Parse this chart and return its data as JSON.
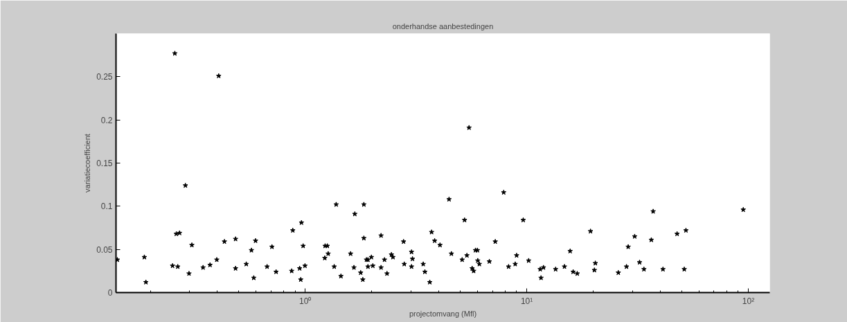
{
  "chart_data": {
    "type": "scatter",
    "title": "onderhandse aanbestedingen",
    "xlabel": "projectomvang (Mfl)",
    "ylabel": "variatiecoefficient",
    "log": "x",
    "xlim": [
      0.14,
      125
    ],
    "ylim": [
      0,
      0.3
    ],
    "xticks": [
      {
        "value": 1,
        "label": "10⁰"
      },
      {
        "value": 10,
        "label": "10¹"
      },
      {
        "value": 100,
        "label": "10²"
      }
    ],
    "yticks": [
      0,
      0.05,
      0.1,
      0.15,
      0.2,
      0.25
    ],
    "grid": false,
    "marker": "star",
    "series": [
      {
        "color": "#000000",
        "x": [
          0.142,
          0.188,
          0.191,
          0.258,
          0.252,
          0.262,
          0.271,
          0.266,
          0.288,
          0.299,
          0.308,
          0.346,
          0.372,
          0.399,
          0.407,
          0.432,
          0.485,
          0.485,
          0.542,
          0.572,
          0.586,
          0.597,
          0.673,
          0.708,
          0.739,
          0.869,
          0.879,
          0.944,
          0.955,
          0.962,
          0.979,
          0.998,
          1.226,
          1.23,
          1.259,
          1.27,
          1.352,
          1.38,
          1.45,
          1.603,
          1.66,
          1.675,
          1.78,
          1.82,
          1.84,
          1.84,
          1.89,
          1.92,
          1.92,
          1.99,
          2.02,
          2.2,
          2.2,
          2.28,
          2.34,
          2.45,
          2.49,
          2.78,
          2.8,
          3.02,
          3.02,
          3.05,
          3.41,
          3.47,
          3.65,
          3.72,
          3.84,
          4.06,
          4.46,
          4.57,
          5.11,
          5.24,
          5.37,
          5.49,
          5.67,
          5.76,
          5.87,
          5.99,
          6.01,
          6.11,
          6.78,
          7.21,
          7.87,
          8.28,
          8.87,
          9.0,
          9.64,
          10.2,
          11.5,
          11.6,
          11.9,
          13.5,
          14.8,
          15.7,
          16.2,
          16.9,
          19.4,
          20.2,
          20.4,
          25.9,
          28.2,
          28.7,
          30.7,
          32.3,
          33.8,
          36.5,
          37.2,
          41.2,
          47.7,
          51.4,
          52.3,
          94.9
        ],
        "values": [
          0.038,
          0.041,
          0.012,
          0.277,
          0.031,
          0.068,
          0.069,
          0.03,
          0.124,
          0.022,
          0.055,
          0.029,
          0.032,
          0.038,
          0.251,
          0.059,
          0.062,
          0.028,
          0.033,
          0.049,
          0.017,
          0.06,
          0.03,
          0.053,
          0.024,
          0.025,
          0.072,
          0.028,
          0.015,
          0.081,
          0.054,
          0.031,
          0.04,
          0.054,
          0.054,
          0.045,
          0.03,
          0.102,
          0.019,
          0.045,
          0.029,
          0.091,
          0.023,
          0.015,
          0.102,
          0.063,
          0.038,
          0.038,
          0.03,
          0.041,
          0.031,
          0.066,
          0.029,
          0.038,
          0.022,
          0.044,
          0.041,
          0.059,
          0.033,
          0.047,
          0.03,
          0.039,
          0.033,
          0.024,
          0.012,
          0.07,
          0.06,
          0.055,
          0.108,
          0.045,
          0.038,
          0.084,
          0.043,
          0.191,
          0.028,
          0.025,
          0.049,
          0.049,
          0.037,
          0.033,
          0.036,
          0.059,
          0.116,
          0.03,
          0.033,
          0.043,
          0.084,
          0.037,
          0.027,
          0.017,
          0.029,
          0.027,
          0.03,
          0.048,
          0.024,
          0.022,
          0.071,
          0.026,
          0.034,
          0.023,
          0.03,
          0.053,
          0.065,
          0.035,
          0.027,
          0.061,
          0.094,
          0.027,
          0.068,
          0.027,
          0.072,
          0.096
        ]
      }
    ]
  }
}
